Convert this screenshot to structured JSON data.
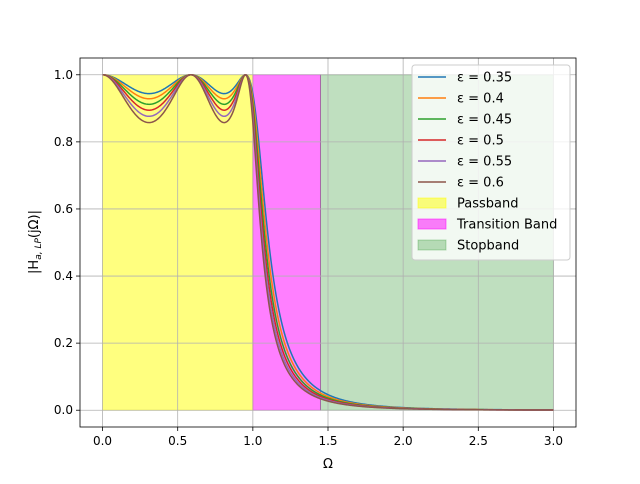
{
  "chart_data": {
    "type": "line",
    "title": "",
    "xlabel": "Ω",
    "ylabel_main": "|H",
    "ylabel_sub": "a, LP",
    "ylabel_tail": "(jΩ)|",
    "xlim": [
      -0.15,
      3.15
    ],
    "ylim": [
      -0.05,
      1.05
    ],
    "xticks": [
      0.0,
      0.5,
      1.0,
      1.5,
      2.0,
      2.5,
      3.0
    ],
    "xtick_labels": [
      "0.0",
      "0.5",
      "1.0",
      "1.5",
      "2.0",
      "2.5",
      "3.0"
    ],
    "yticks": [
      0.0,
      0.2,
      0.4,
      0.6,
      0.8,
      1.0
    ],
    "ytick_labels": [
      "0.0",
      "0.2",
      "0.4",
      "0.6",
      "0.8",
      "1.0"
    ],
    "grid": true,
    "legend_position": "top-right",
    "filter_order": 5,
    "bands": [
      {
        "name": "Passband",
        "x_start": 0.0,
        "x_end": 1.0,
        "y_max": 1.0,
        "color": "#ffff00",
        "alpha": 0.5
      },
      {
        "name": "Transition Band",
        "x_start": 1.0,
        "x_end": 1.45,
        "y_max": 1.0,
        "color": "#ff00ff",
        "alpha": 0.5
      },
      {
        "name": "Stopband",
        "x_start": 1.45,
        "x_end": 3.0,
        "y_max": 1.0,
        "color": "#008000",
        "alpha": 0.25
      }
    ],
    "series": [
      {
        "name": "ε = 0.35",
        "epsilon": 0.35,
        "color": "#1f77b4"
      },
      {
        "name": "ε = 0.4",
        "epsilon": 0.4,
        "color": "#ff7f0e"
      },
      {
        "name": "ε = 0.45",
        "epsilon": 0.45,
        "color": "#2ca02c"
      },
      {
        "name": "ε = 0.5",
        "epsilon": 0.5,
        "color": "#d62728"
      },
      {
        "name": "ε = 0.55",
        "epsilon": 0.55,
        "color": "#9467bd"
      },
      {
        "name": "ε = 0.6",
        "epsilon": 0.6,
        "color": "#8c564b"
      }
    ]
  }
}
